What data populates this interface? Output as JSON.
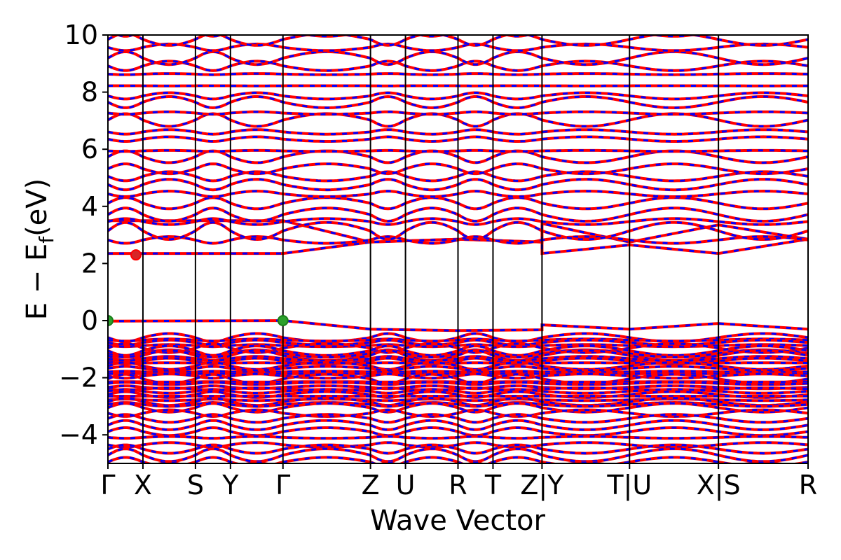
{
  "chart_data": {
    "type": "line",
    "title": "",
    "xlabel": "Wave Vector",
    "ylabel": "E − E",
    "ylabel_subscript": "f",
    "ylabel_unit": "(eV)",
    "ylim": [
      -5,
      10
    ],
    "yticks": [
      -4,
      -2,
      0,
      2,
      4,
      6,
      8,
      10
    ],
    "ytick_labels": [
      "−4",
      "−2",
      "0",
      "2",
      "4",
      "6",
      "8",
      "10"
    ],
    "grid": false,
    "kpoint_ticks": [
      {
        "label": "Γ",
        "x": 0.0
      },
      {
        "label": "X",
        "x": 0.5
      },
      {
        "label": "S",
        "x": 1.25
      },
      {
        "label": "Y",
        "x": 1.75
      },
      {
        "label": "Γ",
        "x": 2.5
      },
      {
        "label": "Z",
        "x": 3.75
      },
      {
        "label": "U",
        "x": 4.25
      },
      {
        "label": "R",
        "x": 5.0
      },
      {
        "label": "T",
        "x": 5.5
      },
      {
        "label": "Z|Y",
        "x": 6.2
      },
      {
        "label": "T|U",
        "x": 7.45
      },
      {
        "label": "X|S",
        "x": 8.72
      },
      {
        "label": "R",
        "x": 10.0
      }
    ],
    "xlim": [
      0,
      10
    ],
    "band_colors": {
      "spin_up": "#ff0000",
      "spin_down": "#0000ff"
    },
    "series": [
      {
        "name": "",
        "color": "#ff0000",
        "values": [
          [
            0.0,
            2.35
          ],
          [
            2.5,
            2.35
          ],
          [
            3.75,
            2.75
          ],
          [
            5.0,
            2.85
          ],
          [
            6.2,
            2.75
          ],
          [
            6.2,
            2.35
          ],
          [
            7.45,
            2.65
          ],
          [
            8.72,
            2.35
          ],
          [
            10.0,
            2.85
          ]
        ]
      },
      {
        "name": "",
        "color": "#ff0000",
        "values": [
          [
            0.0,
            3.5
          ],
          [
            2.5,
            3.5
          ],
          [
            3.75,
            2.75
          ],
          [
            5.0,
            2.85
          ],
          [
            6.2,
            2.75
          ],
          [
            6.2,
            3.4
          ],
          [
            7.45,
            2.75
          ],
          [
            8.72,
            3.35
          ],
          [
            10.0,
            2.85
          ]
        ]
      },
      {
        "name": "",
        "color": "#ff0000",
        "values": [
          [
            0.0,
            -0.02
          ],
          [
            2.5,
            0.0
          ],
          [
            3.75,
            -0.3
          ],
          [
            5.0,
            -0.35
          ],
          [
            6.2,
            -0.32
          ],
          [
            6.2,
            -0.15
          ],
          [
            7.45,
            -0.3
          ],
          [
            8.72,
            -0.1
          ],
          [
            10.0,
            -0.3
          ]
        ]
      }
    ],
    "extrema_markers": [
      {
        "type": "cbm",
        "x": 0.4,
        "y": 2.3,
        "color": "#d62728"
      },
      {
        "type": "vbm",
        "x": 0.0,
        "y": 0.0,
        "color": "#2ca02c"
      },
      {
        "type": "vbm",
        "x": 2.5,
        "y": 0.0,
        "color": "#2ca02c"
      }
    ]
  }
}
